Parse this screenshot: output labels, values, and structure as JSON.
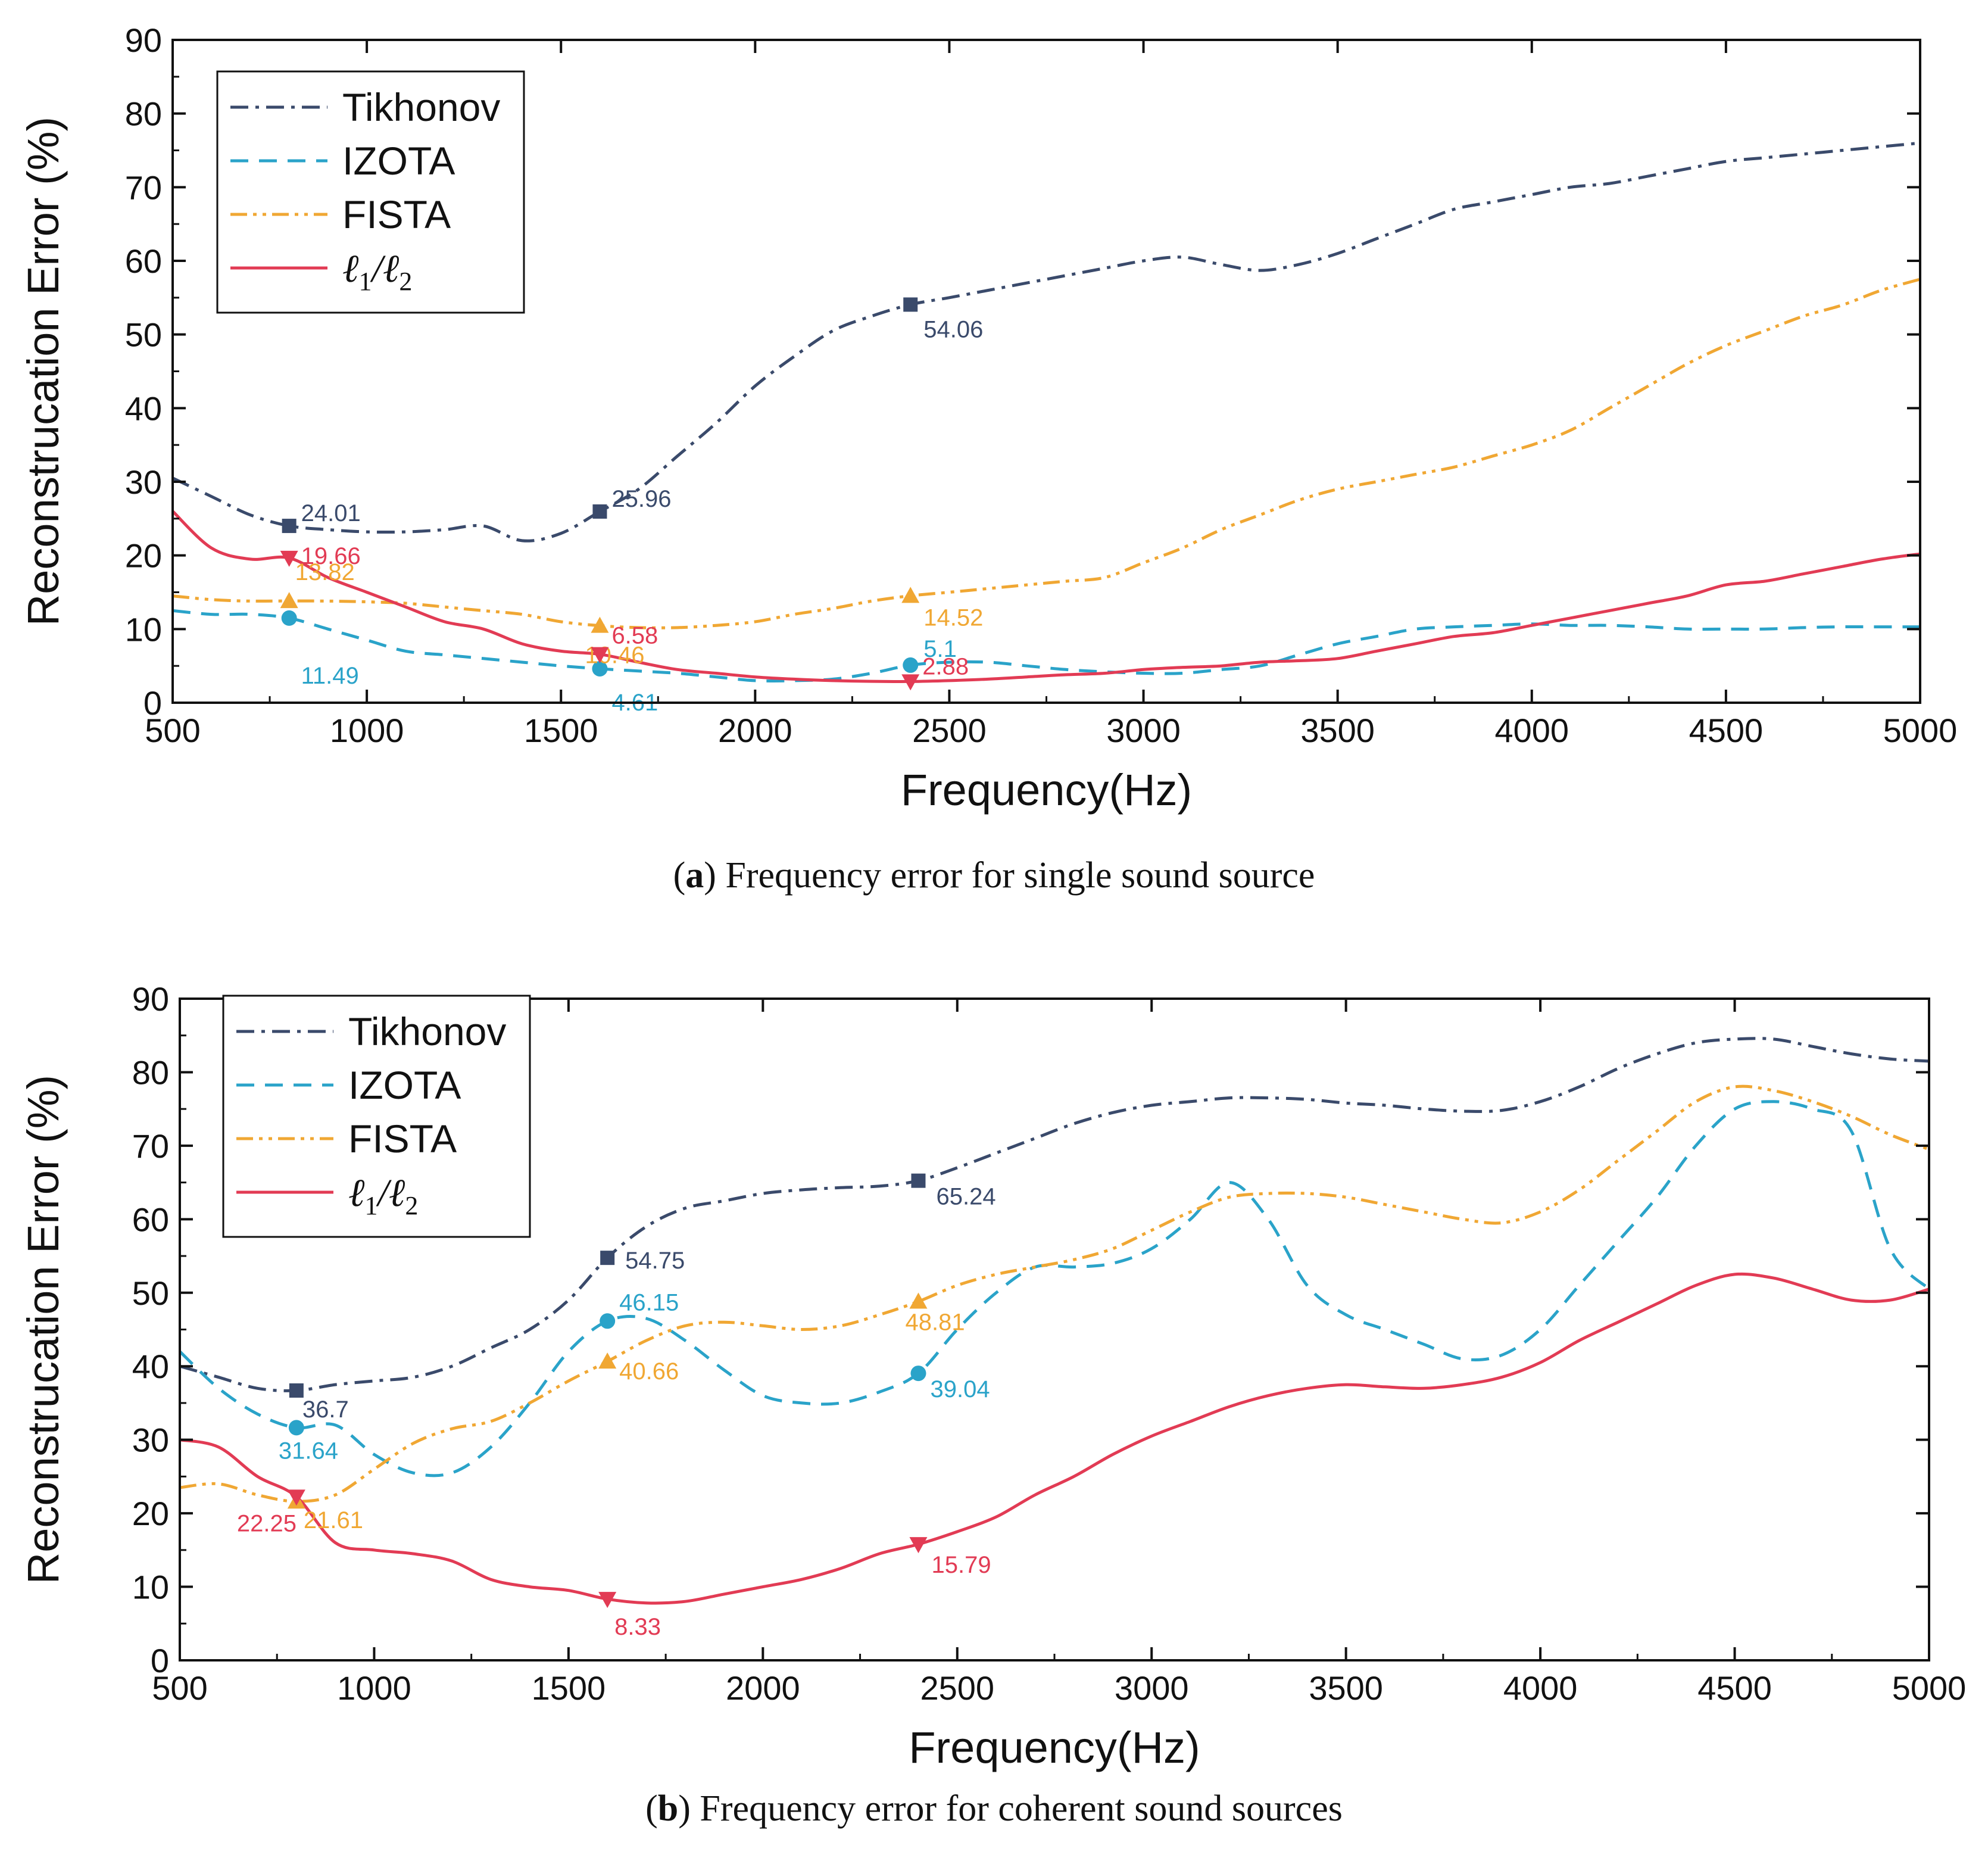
{
  "chart_data": [
    {
      "type": "line",
      "panel_label": "a",
      "caption": "Frequency error for single sound source",
      "xlabel": "Frequency(Hz)",
      "ylabel": "Reconstrucation Error (%)",
      "xlim": [
        500,
        5000
      ],
      "ylim": [
        0,
        90
      ],
      "xticks": [
        500,
        1000,
        1500,
        2000,
        2500,
        3000,
        3500,
        4000,
        4500,
        5000
      ],
      "yticks": [
        0,
        10,
        20,
        30,
        40,
        50,
        60,
        70,
        80,
        90
      ],
      "legend": {
        "placement": "top-left"
      },
      "series": [
        {
          "name": "Tikhonov",
          "color": "#3a4a6b",
          "dash": "dashdot",
          "marker": "square",
          "x": [
            500,
            600,
            700,
            800,
            900,
            1000,
            1100,
            1200,
            1300,
            1400,
            1500,
            1600,
            1700,
            1800,
            1900,
            2000,
            2100,
            2200,
            2300,
            2400,
            2500,
            2600,
            2700,
            2800,
            2900,
            3000,
            3100,
            3200,
            3300,
            3400,
            3500,
            3600,
            3700,
            3800,
            3900,
            4000,
            4100,
            4200,
            4300,
            4400,
            4500,
            4600,
            4700,
            4800,
            4900,
            5000
          ],
          "y": [
            30.5,
            28,
            25.5,
            24.01,
            23.5,
            23.2,
            23.2,
            23.5,
            24,
            22,
            23,
            25.96,
            29,
            33.5,
            38,
            43,
            47,
            50.5,
            52.5,
            54.06,
            55,
            56,
            57,
            58,
            59,
            60,
            60.5,
            59.5,
            58.7,
            59.5,
            61,
            63,
            65,
            67,
            68,
            69,
            70,
            70.5,
            71.5,
            72.5,
            73.5,
            74,
            74.5,
            75,
            75.5,
            76
          ],
          "markers": [
            {
              "x": 800,
              "y": 24.01,
              "label": "24.01"
            },
            {
              "x": 1600,
              "y": 25.96,
              "label": "25.96"
            },
            {
              "x": 2400,
              "y": 54.06,
              "label": "54.06"
            }
          ]
        },
        {
          "name": "IZOTA",
          "color": "#2aa3c9",
          "dash": "dash",
          "marker": "circle",
          "x": [
            500,
            600,
            700,
            800,
            900,
            1000,
            1100,
            1200,
            1300,
            1400,
            1500,
            1600,
            1700,
            1800,
            1900,
            2000,
            2100,
            2200,
            2300,
            2400,
            2500,
            2600,
            2700,
            2800,
            2900,
            3000,
            3100,
            3200,
            3300,
            3400,
            3500,
            3600,
            3700,
            3800,
            3900,
            4000,
            4100,
            4200,
            4300,
            4400,
            4500,
            4600,
            4700,
            4800,
            4900,
            5000
          ],
          "y": [
            12.5,
            12,
            12,
            11.49,
            10,
            8.5,
            7,
            6.5,
            6,
            5.5,
            5,
            4.61,
            4.3,
            4,
            3.5,
            3,
            3,
            3.2,
            4,
            5.1,
            5.5,
            5.5,
            5,
            4.5,
            4.2,
            4,
            4,
            4.5,
            5,
            6.5,
            8,
            9,
            10,
            10.3,
            10.5,
            10.7,
            10.5,
            10.5,
            10.3,
            10,
            10,
            10,
            10.2,
            10.3,
            10.3,
            10.3
          ],
          "markers": [
            {
              "x": 800,
              "y": 11.49,
              "label": "11.49"
            },
            {
              "x": 1600,
              "y": 4.61,
              "label": "4.61"
            },
            {
              "x": 2400,
              "y": 5.1,
              "label": "5.1"
            }
          ]
        },
        {
          "name": "FISTA",
          "color": "#f0a733",
          "dash": "dashdotdot",
          "marker": "triangle-up",
          "x": [
            500,
            600,
            700,
            800,
            900,
            1000,
            1100,
            1200,
            1300,
            1400,
            1500,
            1600,
            1700,
            1800,
            1900,
            2000,
            2100,
            2200,
            2300,
            2400,
            2500,
            2600,
            2700,
            2800,
            2900,
            3000,
            3100,
            3200,
            3300,
            3400,
            3500,
            3600,
            3700,
            3800,
            3900,
            4000,
            4100,
            4200,
            4300,
            4400,
            4500,
            4600,
            4700,
            4800,
            4900,
            5000
          ],
          "y": [
            14.5,
            14,
            13.8,
            13.82,
            13.8,
            13.7,
            13.5,
            13,
            12.5,
            12,
            11,
            10.46,
            10.2,
            10.2,
            10.5,
            11,
            12,
            12.8,
            13.8,
            14.52,
            15,
            15.5,
            16,
            16.5,
            17,
            19,
            21,
            23.5,
            25.5,
            27.5,
            29,
            30,
            31,
            32,
            33.5,
            35,
            37,
            40,
            43,
            46,
            48.5,
            50.5,
            52.5,
            54,
            56,
            57.5
          ],
          "markers": [
            {
              "x": 800,
              "y": 13.82,
              "label": "13.82"
            },
            {
              "x": 1600,
              "y": 10.46,
              "label": "10.46"
            },
            {
              "x": 2400,
              "y": 14.52,
              "label": "14.52"
            }
          ]
        },
        {
          "name": "ℓ1/ℓ2",
          "color": "#e23b54",
          "dash": "solid",
          "marker": "triangle-down",
          "x": [
            500,
            600,
            700,
            800,
            900,
            1000,
            1100,
            1200,
            1300,
            1400,
            1500,
            1600,
            1700,
            1800,
            1900,
            2000,
            2100,
            2200,
            2300,
            2400,
            2500,
            2600,
            2700,
            2800,
            2900,
            3000,
            3100,
            3200,
            3300,
            3400,
            3500,
            3600,
            3700,
            3800,
            3900,
            4000,
            4100,
            4200,
            4300,
            4400,
            4500,
            4600,
            4700,
            4800,
            4900,
            5000
          ],
          "y": [
            26,
            21,
            19.5,
            19.66,
            17,
            15,
            13,
            11,
            10,
            8,
            7,
            6.58,
            5.5,
            4.5,
            4,
            3.5,
            3.2,
            3,
            2.9,
            2.88,
            3,
            3.2,
            3.5,
            3.8,
            4,
            4.5,
            4.8,
            5,
            5.5,
            5.7,
            6,
            7,
            8,
            9,
            9.5,
            10.5,
            11.5,
            12.5,
            13.5,
            14.5,
            16,
            16.5,
            17.5,
            18.5,
            19.5,
            20.2
          ],
          "markers": [
            {
              "x": 800,
              "y": 19.66,
              "label": "19.66"
            },
            {
              "x": 1600,
              "y": 6.58,
              "label": "6.58"
            },
            {
              "x": 2400,
              "y": 2.88,
              "label": "2.88"
            }
          ]
        }
      ]
    },
    {
      "type": "line",
      "panel_label": "b",
      "caption": "Frequency error for coherent sound sources",
      "xlabel": "Frequency(Hz)",
      "ylabel": "Reconstrucation Error (%)",
      "xlim": [
        500,
        5000
      ],
      "ylim": [
        0,
        90
      ],
      "xticks": [
        500,
        1000,
        1500,
        2000,
        2500,
        3000,
        3500,
        4000,
        4500,
        5000
      ],
      "yticks": [
        0,
        10,
        20,
        30,
        40,
        50,
        60,
        70,
        80,
        90
      ],
      "legend": {
        "placement": "top-left"
      },
      "series": [
        {
          "name": "Tikhonov",
          "color": "#3a4a6b",
          "dash": "dashdot",
          "marker": "square",
          "x": [
            500,
            600,
            700,
            800,
            900,
            1000,
            1100,
            1200,
            1300,
            1400,
            1500,
            1600,
            1700,
            1800,
            1900,
            2000,
            2100,
            2200,
            2300,
            2400,
            2500,
            2600,
            2700,
            2800,
            2900,
            3000,
            3100,
            3200,
            3300,
            3400,
            3500,
            3600,
            3700,
            3800,
            3900,
            4000,
            4100,
            4200,
            4300,
            4400,
            4500,
            4600,
            4700,
            4800,
            4900,
            5000
          ],
          "y": [
            40,
            38.5,
            37,
            36.7,
            37.5,
            38,
            38.5,
            40,
            42.5,
            45,
            49,
            54.75,
            59,
            61.5,
            62.5,
            63.5,
            64,
            64.3,
            64.5,
            65.24,
            67,
            69,
            71,
            73,
            74.5,
            75.5,
            76,
            76.5,
            76.5,
            76.3,
            75.8,
            75.5,
            75,
            74.7,
            74.8,
            76,
            78,
            80.5,
            82.5,
            84,
            84.5,
            84.5,
            83.5,
            82.5,
            81.8,
            81.5
          ],
          "markers": [
            {
              "x": 800,
              "y": 36.7,
              "label": "36.7"
            },
            {
              "x": 1600,
              "y": 54.75,
              "label": "54.75"
            },
            {
              "x": 2400,
              "y": 65.24,
              "label": "65.24"
            }
          ]
        },
        {
          "name": "IZOTA",
          "color": "#2aa3c9",
          "dash": "dash",
          "marker": "circle",
          "x": [
            500,
            600,
            700,
            800,
            900,
            1000,
            1100,
            1200,
            1300,
            1400,
            1500,
            1600,
            1700,
            1800,
            1900,
            2000,
            2100,
            2200,
            2300,
            2400,
            2500,
            2600,
            2700,
            2800,
            2900,
            3000,
            3100,
            3200,
            3300,
            3400,
            3500,
            3600,
            3700,
            3800,
            3900,
            4000,
            4100,
            4200,
            4300,
            4400,
            4500,
            4600,
            4700,
            4800,
            4900,
            5000
          ],
          "y": [
            42,
            37,
            33.5,
            31.64,
            32,
            28,
            25.5,
            25.5,
            29,
            35,
            42,
            46.15,
            46.5,
            43.5,
            39.5,
            36,
            35,
            35,
            36.5,
            39.04,
            45,
            50,
            53.5,
            53.5,
            54,
            56,
            60,
            65,
            60,
            51,
            47,
            45,
            43,
            41,
            41.5,
            45,
            51,
            57,
            63,
            70,
            75,
            76,
            75,
            72,
            56,
            50.5
          ],
          "markers": [
            {
              "x": 800,
              "y": 31.64,
              "label": "31.64"
            },
            {
              "x": 1600,
              "y": 46.15,
              "label": "46.15"
            },
            {
              "x": 2400,
              "y": 39.04,
              "label": "39.04"
            }
          ]
        },
        {
          "name": "FISTA",
          "color": "#f0a733",
          "dash": "dashdotdot",
          "marker": "triangle-up",
          "x": [
            500,
            600,
            700,
            800,
            900,
            1000,
            1100,
            1200,
            1300,
            1400,
            1500,
            1600,
            1700,
            1800,
            1900,
            2000,
            2100,
            2200,
            2300,
            2400,
            2500,
            2600,
            2700,
            2800,
            2900,
            3000,
            3100,
            3200,
            3300,
            3400,
            3500,
            3600,
            3700,
            3800,
            3900,
            4000,
            4100,
            4200,
            4300,
            4400,
            4500,
            4600,
            4700,
            4800,
            4900,
            5000
          ],
          "y": [
            23.5,
            24,
            22.5,
            21.61,
            22.5,
            26,
            29.5,
            31.5,
            32.5,
            35,
            38,
            40.66,
            43.5,
            45.5,
            46,
            45.5,
            45,
            45.5,
            47,
            48.81,
            51,
            52.5,
            53.5,
            54.5,
            56,
            58.5,
            61,
            63,
            63.5,
            63.5,
            63,
            62,
            61,
            60,
            59.5,
            61,
            64,
            68,
            72,
            76,
            78,
            77.5,
            76,
            74,
            71.5,
            69.5
          ],
          "markers": [
            {
              "x": 800,
              "y": 21.61,
              "label": "21.61"
            },
            {
              "x": 1600,
              "y": 40.66,
              "label": "40.66"
            },
            {
              "x": 2400,
              "y": 48.81,
              "label": "48.81"
            }
          ]
        },
        {
          "name": "ℓ1/ℓ2",
          "color": "#e23b54",
          "dash": "solid",
          "marker": "triangle-down",
          "x": [
            500,
            600,
            700,
            800,
            900,
            1000,
            1100,
            1200,
            1300,
            1400,
            1500,
            1600,
            1700,
            1800,
            1900,
            2000,
            2100,
            2200,
            2300,
            2400,
            2500,
            2600,
            2700,
            2800,
            2900,
            3000,
            3100,
            3200,
            3300,
            3400,
            3500,
            3600,
            3700,
            3800,
            3900,
            4000,
            4100,
            4200,
            4300,
            4400,
            4500,
            4600,
            4700,
            4800,
            4900,
            5000
          ],
          "y": [
            30,
            29,
            25,
            22.25,
            16,
            15,
            14.5,
            13.5,
            11,
            10,
            9.5,
            8.33,
            7.8,
            8,
            9,
            10,
            11,
            12.5,
            14.5,
            15.79,
            17.5,
            19.5,
            22.5,
            25,
            28,
            30.5,
            32.5,
            34.5,
            36,
            37,
            37.5,
            37.2,
            37,
            37.5,
            38.5,
            40.5,
            43.5,
            46,
            48.5,
            51,
            52.5,
            52,
            50.5,
            49,
            49,
            50.5
          ],
          "markers": [
            {
              "x": 800,
              "y": 22.25,
              "label": "22.25"
            },
            {
              "x": 1600,
              "y": 8.33,
              "label": "8.33"
            },
            {
              "x": 2400,
              "y": 15.79,
              "label": "15.79"
            }
          ]
        }
      ]
    }
  ]
}
